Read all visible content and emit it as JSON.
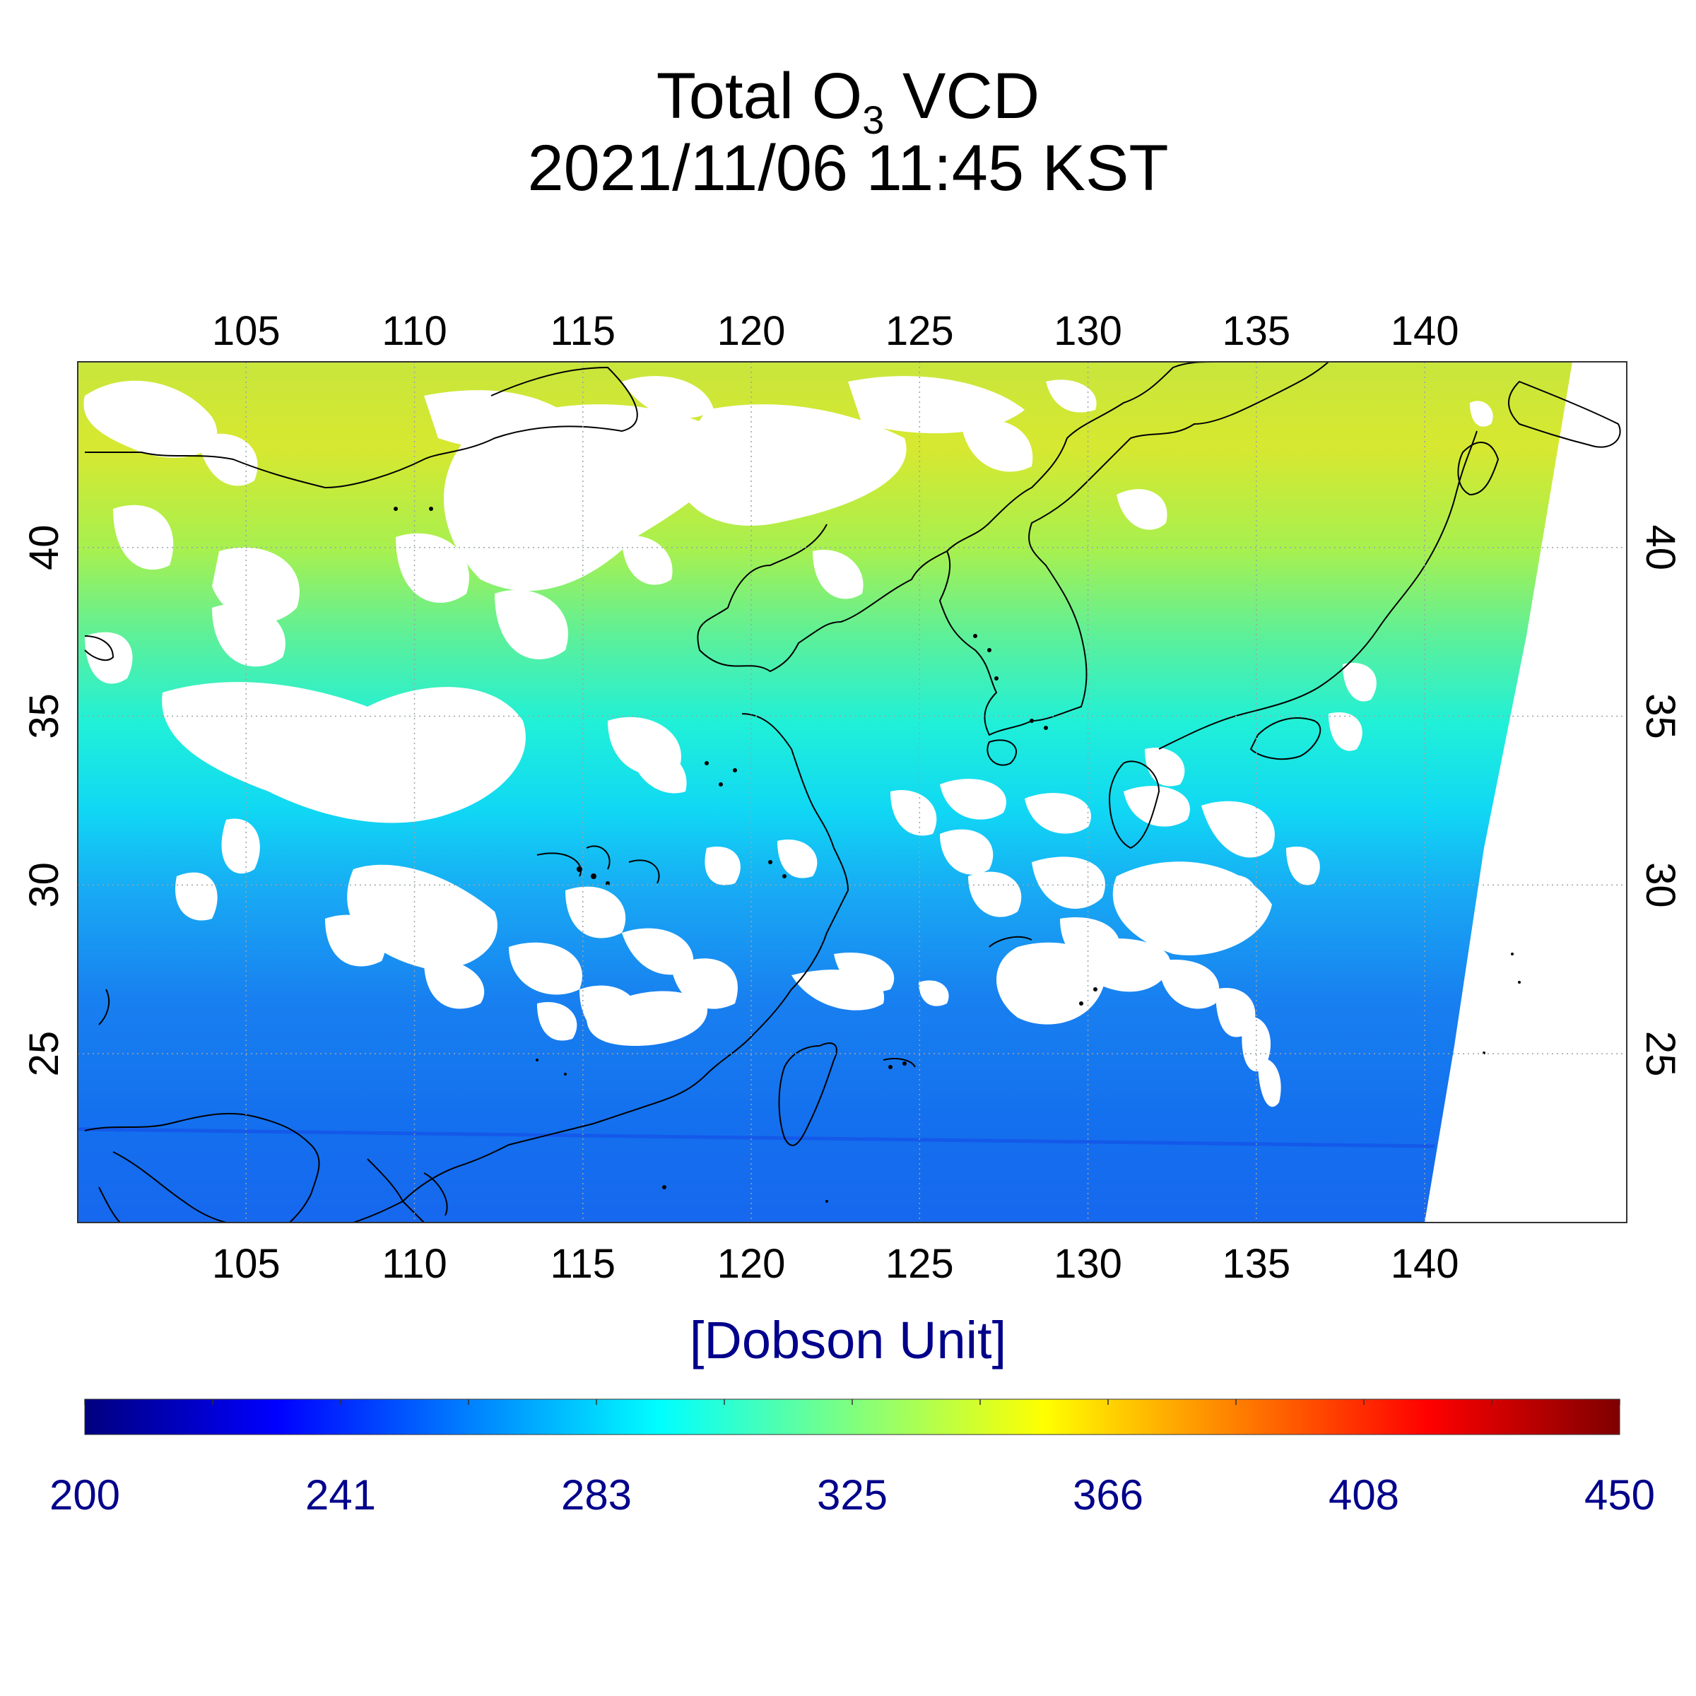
{
  "title": {
    "prefix": "Total O",
    "subscript": "3",
    "suffix": " VCD",
    "datetime": "2021/11/06 11:45 KST"
  },
  "map": {
    "lon_range": [
      100,
      146
    ],
    "lat_range": [
      20,
      45.5
    ],
    "lon_ticks": [
      "105",
      "110",
      "115",
      "120",
      "125",
      "130",
      "135",
      "140"
    ],
    "lat_ticks": [
      "25",
      "30",
      "35",
      "40"
    ],
    "grid": true,
    "gridline_style": "dotted"
  },
  "colorbar": {
    "unit": "[Dobson Unit]",
    "min": 200,
    "max": 450,
    "labels": [
      "200",
      "241",
      "283",
      "325",
      "366",
      "408",
      "450"
    ],
    "colormap": "jet"
  },
  "colors": {
    "label_blue": "#00008b",
    "cloud": "#ffffff",
    "coastline": "#000000"
  }
}
